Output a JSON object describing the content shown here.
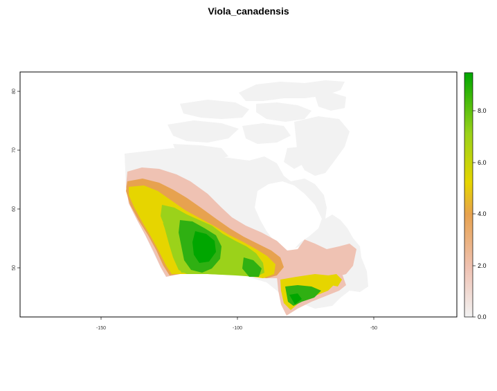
{
  "title": "Viola_canadensis",
  "map": {
    "x_ticks": [
      "-150",
      "-100",
      "-50"
    ],
    "y_ticks": [
      "80",
      "70",
      "60",
      "50"
    ],
    "x_range": [
      -180,
      -20
    ],
    "y_range": [
      41,
      83
    ],
    "background": "#ffffff",
    "no_suitability_color": "#f2f2f2"
  },
  "legend": {
    "ticks": [
      "8.0",
      "6.0",
      "4.0",
      "2.0",
      "0.0"
    ],
    "range": [
      0,
      9.5
    ],
    "colors": [
      "#f2f2f2",
      "#efc2b3",
      "#e7a24f",
      "#e6d500",
      "#9bd21a",
      "#00a600"
    ]
  }
}
